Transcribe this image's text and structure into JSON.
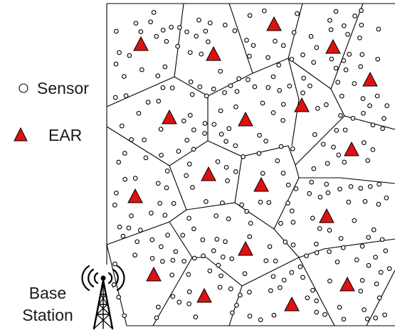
{
  "legend": {
    "sensor_label": "Sensor",
    "ear_label": "EAR"
  },
  "base_station": {
    "line1": "Base",
    "line2": "Station"
  },
  "colors": {
    "ear_fill": "#dd1111",
    "sensor_stroke": "#000000",
    "cell_edge": "#000000"
  },
  "icons": {
    "sensor_marker": "hollow-circle",
    "ear_marker": "filled-triangle",
    "base_station_marker": "antenna-tower-icon"
  }
}
